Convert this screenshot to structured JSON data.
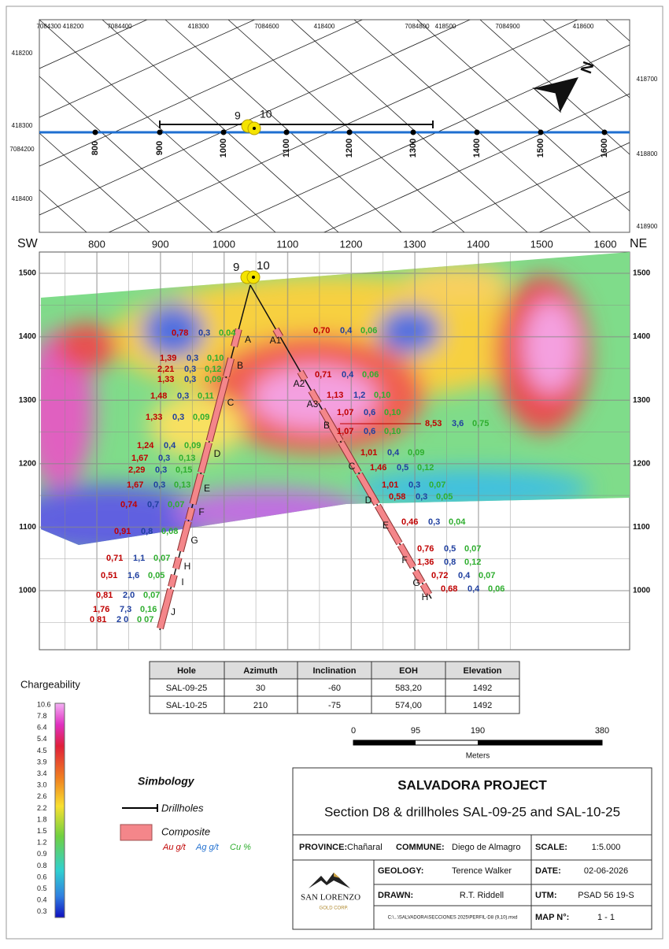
{
  "plan": {
    "top_labels": [
      "7084300",
      "418200",
      "7084400",
      "418300",
      "7084600",
      "418400",
      "7084800",
      "418500",
      "7084900",
      "418600"
    ],
    "left_labels": [
      "418200",
      "418300",
      "7084200",
      "418400"
    ],
    "right_labels": [
      "418700",
      "418800",
      "418900"
    ],
    "stations": [
      "800",
      "900",
      "1000",
      "1100",
      "1200",
      "1300",
      "1400",
      "1500",
      "1600"
    ],
    "holes": [
      "9",
      "10"
    ],
    "north": "N"
  },
  "section": {
    "sw": "SW",
    "ne": "NE",
    "x_labels": [
      "800",
      "900",
      "1000",
      "1100",
      "1200",
      "1300",
      "1400",
      "1500",
      "1600"
    ],
    "elev_labels": [
      "1500",
      "1400",
      "1300",
      "1200",
      "1100",
      "1000"
    ],
    "holes": [
      "9",
      "10"
    ],
    "hole_9": {
      "composites": [
        "A",
        "B",
        "C",
        "D",
        "E",
        "F",
        "G",
        "H",
        "I",
        "J"
      ],
      "assays": [
        [
          "0,78",
          "0,3",
          "0,04"
        ],
        [
          "1,39",
          "0,3",
          "0,10"
        ],
        [
          "2,21",
          "0,3",
          "0,12"
        ],
        [
          "1,33",
          "0,3",
          "0,09"
        ],
        [
          "1,48",
          "0,3",
          "0,11"
        ],
        [
          "1,33",
          "0,3",
          "0,09"
        ],
        [
          "1,24",
          "0,4",
          "0,09"
        ],
        [
          "1,67",
          "0,3",
          "0,13"
        ],
        [
          "2,29",
          "0,3",
          "0,15"
        ],
        [
          "1,67",
          "0,3",
          "0,13"
        ],
        [
          "0,74",
          "0,7",
          "0,07"
        ],
        [
          "0,91",
          "0,8",
          "0,08"
        ],
        [
          "0,71",
          "1,1",
          "0,07"
        ],
        [
          "0,51",
          "1,6",
          "0,05"
        ],
        [
          "0,81",
          "2,0",
          "0,07"
        ],
        [
          "1,76",
          "7,3",
          "0,16"
        ],
        [
          "0 81",
          "2 0",
          "0 07"
        ]
      ]
    },
    "hole_10": {
      "composites": [
        "A1",
        "A2",
        "A3",
        "B",
        "C",
        "D",
        "E",
        "F",
        "G",
        "H"
      ],
      "assays": [
        [
          "0,70",
          "0,4",
          "0,06"
        ],
        [
          "0,71",
          "0,4",
          "0,06"
        ],
        [
          "1,13",
          "1,2",
          "0,10"
        ],
        [
          "1,07",
          "0,6",
          "0,10"
        ],
        [
          "8,53",
          "3,6",
          "0,75"
        ],
        [
          "1,07",
          "0,6",
          "0,10"
        ],
        [
          "1,01",
          "0,4",
          "0,09"
        ],
        [
          "1,46",
          "0,5",
          "0,12"
        ],
        [
          "1,01",
          "0,3",
          "0,07"
        ],
        [
          "0,58",
          "0,3",
          "0,05"
        ],
        [
          "0,46",
          "0,3",
          "0,04"
        ],
        [
          "0,76",
          "0,5",
          "0,07"
        ],
        [
          "1,36",
          "0,8",
          "0,12"
        ],
        [
          "0,72",
          "0,4",
          "0,07"
        ],
        [
          "0,68",
          "0,4",
          "0,06"
        ]
      ]
    }
  },
  "table": {
    "header": [
      "Hole",
      "Azimuth",
      "Inclination",
      "EOH",
      "Elevation"
    ],
    "rows": [
      [
        "SAL-09-25",
        "30",
        "-60",
        "583,20",
        "1492"
      ],
      [
        "SAL-10-25",
        "210",
        "-75",
        "574,00",
        "1492"
      ]
    ]
  },
  "scale_bar": {
    "labels": [
      "0",
      "95",
      "190",
      "380"
    ],
    "unit": "Meters"
  },
  "legend": {
    "title": "Chargeability",
    "labels": [
      "10.6",
      "7.8",
      "6.4",
      "5.4",
      "4.5",
      "3.9",
      "3.4",
      "3.0",
      "2.6",
      "2.2",
      "1.8",
      "1.5",
      "1.2",
      "0.9",
      "0.8",
      "0.6",
      "0.5",
      "0.4",
      "0.3"
    ]
  },
  "symbology": {
    "title": "Simbology",
    "drillholes": "Drillholes",
    "composite": "Composite",
    "au": "Au g/t",
    "ag": "Ag g/t",
    "cu": "Cu %"
  },
  "title_block": {
    "project": "SALVADORA PROJECT",
    "subtitle": "Section D8 & drillholes SAL-09-25 and SAL-10-25",
    "province_label": "PROVINCE:",
    "province": "Chañaral",
    "commune_label": "COMMUNE:",
    "commune": "Diego de Almagro",
    "scale_label": "SCALE:",
    "scale": "1:5.000",
    "geology_label": "GEOLOGY:",
    "geology": "Terence Walker",
    "date_label": "DATE:",
    "date": "02-06-2026",
    "drawn_label": "DRAWN:",
    "drawn": "R.T. Riddell",
    "utm_label": "UTM:",
    "utm": "PSAD 56 19-S",
    "file": "C:\\...\\SALVADORA\\SECCIONES 2025\\PERFIL-D8 (9,10).mxd",
    "map_label": "MAP N°:",
    "map": "1 - 1",
    "logo_name": "SAN LORENZO",
    "logo_sub": "GOLD CORP."
  }
}
